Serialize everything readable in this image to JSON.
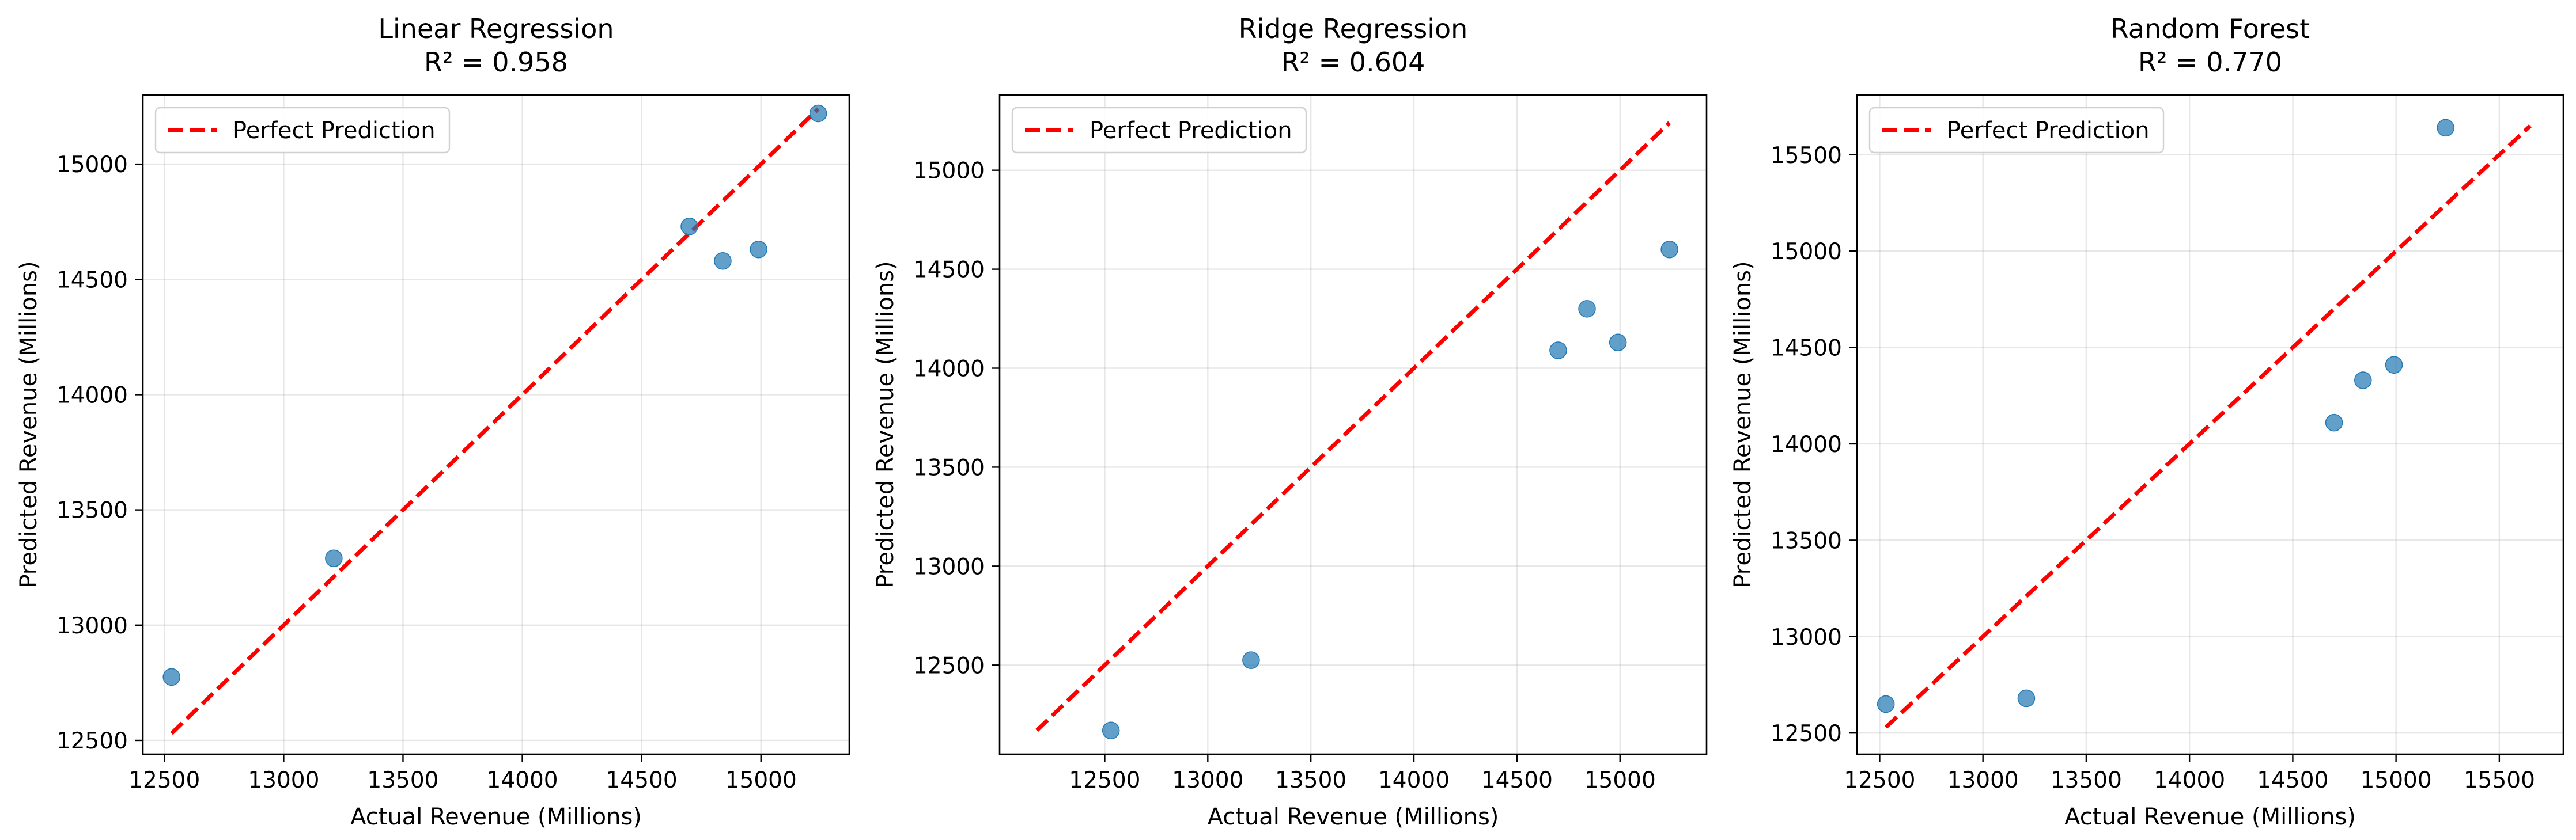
{
  "chart_data": [
    {
      "type": "scatter",
      "title": "Linear Regression",
      "subtitle": "R² = 0.958",
      "xlabel": "Actual Revenue (Millions)",
      "ylabel": "Predicted Revenue (Millions)",
      "xlim": [
        12410,
        15370
      ],
      "ylim": [
        12440,
        15300
      ],
      "xticks": [
        12500,
        13000,
        13500,
        14000,
        14500,
        15000
      ],
      "yticks": [
        12500,
        13000,
        13500,
        14000,
        14500,
        15000
      ],
      "points": [
        {
          "x": 12530,
          "y": 12775
        },
        {
          "x": 13210,
          "y": 13290
        },
        {
          "x": 14700,
          "y": 14730
        },
        {
          "x": 14840,
          "y": 14580
        },
        {
          "x": 14990,
          "y": 14630
        },
        {
          "x": 15240,
          "y": 15220
        }
      ],
      "reference_line": {
        "name": "Perfect Prediction",
        "from": [
          12530,
          12530
        ],
        "to": [
          15240,
          15240
        ]
      },
      "grid": true,
      "legend_position": "top-left"
    },
    {
      "type": "scatter",
      "title": "Ridge Regression",
      "subtitle": "R² = 0.604",
      "xlabel": "Actual Revenue (Millions)",
      "ylabel": "Predicted Revenue (Millions)",
      "xlim": [
        11990,
        15420
      ],
      "ylim": [
        12050,
        15380
      ],
      "xticks": [
        12500,
        13000,
        13500,
        14000,
        14500,
        15000
      ],
      "yticks": [
        12500,
        13000,
        13500,
        14000,
        14500,
        15000
      ],
      "points": [
        {
          "x": 12530,
          "y": 12170
        },
        {
          "x": 13210,
          "y": 12525
        },
        {
          "x": 14700,
          "y": 14090
        },
        {
          "x": 14840,
          "y": 14300
        },
        {
          "x": 14990,
          "y": 14130
        },
        {
          "x": 15240,
          "y": 14600
        }
      ],
      "reference_line": {
        "name": "Perfect Prediction",
        "from": [
          12170,
          12170
        ],
        "to": [
          15240,
          15240
        ]
      },
      "grid": true,
      "legend_position": "top-left"
    },
    {
      "type": "scatter",
      "title": "Random Forest",
      "subtitle": "R² = 0.770",
      "xlabel": "Actual Revenue (Millions)",
      "ylabel": "Predicted Revenue (Millions)",
      "xlim": [
        12390,
        15810
      ],
      "ylim": [
        12390,
        15810
      ],
      "xticks": [
        12500,
        13000,
        13500,
        14000,
        14500,
        15000,
        15500
      ],
      "yticks": [
        12500,
        13000,
        13500,
        14000,
        14500,
        15000,
        15500
      ],
      "points": [
        {
          "x": 12530,
          "y": 12650
        },
        {
          "x": 13210,
          "y": 12680
        },
        {
          "x": 14700,
          "y": 14110
        },
        {
          "x": 14840,
          "y": 14330
        },
        {
          "x": 14990,
          "y": 14410
        },
        {
          "x": 15240,
          "y": 15640
        }
      ],
      "reference_line": {
        "name": "Perfect Prediction",
        "from": [
          12530,
          12530
        ],
        "to": [
          15650,
          15650
        ]
      },
      "grid": true,
      "legend_position": "top-left"
    }
  ],
  "colors": {
    "points": "#1f77b4",
    "reference_line": "#ff0000",
    "grid": "#b0b0b0"
  }
}
